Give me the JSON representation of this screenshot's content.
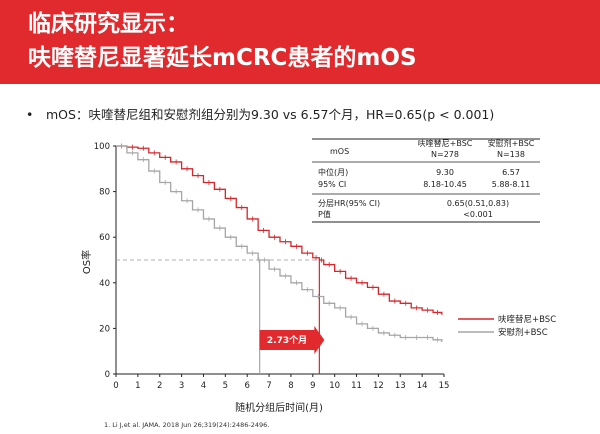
{
  "slide": {
    "title_line1": "临床研究显示：",
    "title_line2": "呋喹替尼显著延长mCRC患者的mOS",
    "bullet": "mOS：呋喹替尼组和安慰剂组分别为9.30 vs 6.57个月，HR=0.65(p < 0.001)",
    "footnote": "1.    Li J,et al. JAMA. 2018 Jun 26;319(24):2486-2496."
  },
  "table": {
    "row1": {
      "label": "mOS",
      "col1": "呋喹替尼+BSC",
      "col1b": "N=278",
      "col2": "安慰剂+BSC",
      "col2b": "N=138"
    },
    "row2": {
      "label": "中位(月)",
      "label2": "95% CI",
      "col1": "9.30",
      "col1b": "8.18-10.45",
      "col2": "6.57",
      "col2b": "5.88-8.11"
    },
    "row3": {
      "label": "分层HR(95% CI)",
      "label2": "P值",
      "value": "0.65(0.51,0.83)",
      "value2": "<0.001"
    }
  },
  "colors": {
    "accent": "#e02a2d",
    "treatment": "#d7262b",
    "placebo": "#a6a6a6",
    "gap_box": "#e02a2d"
  },
  "chart_data": {
    "type": "line",
    "xlabel": "随机分组后时间(月)",
    "ylabel": "OS率",
    "xlim": [
      0,
      15
    ],
    "ylim": [
      0,
      100
    ],
    "xticks": [
      0,
      1,
      2,
      3,
      4,
      5,
      6,
      7,
      8,
      9,
      10,
      11,
      12,
      13,
      14,
      15
    ],
    "yticks": [
      0,
      20,
      40,
      60,
      80,
      100
    ],
    "reference_line_y": 50,
    "median_markers": [
      6.57,
      9.3
    ],
    "gap_label": "2.73个月",
    "series": [
      {
        "name": "呋喹替尼+BSC",
        "color": "#d7262b",
        "x": [
          0,
          0.5,
          1,
          1.5,
          2,
          2.5,
          3,
          3.5,
          4,
          4.5,
          5,
          5.5,
          6,
          6.5,
          7,
          7.5,
          8,
          8.5,
          9,
          9.3,
          9.5,
          10,
          10.5,
          11,
          11.5,
          12,
          12.5,
          13,
          13.5,
          14,
          14.5,
          14.9
        ],
        "y": [
          100,
          99.5,
          99,
          97,
          95,
          93,
          90,
          87,
          84,
          81,
          77,
          73,
          68,
          63,
          60,
          58,
          56,
          53,
          51,
          50,
          48,
          45,
          42,
          40,
          38,
          35,
          32,
          31,
          29,
          28,
          27,
          26
        ]
      },
      {
        "name": "安慰剂+BSC",
        "color": "#a6a6a6",
        "x": [
          0,
          0.5,
          1,
          1.5,
          2,
          2.5,
          3,
          3.5,
          4,
          4.5,
          5,
          5.5,
          6,
          6.5,
          6.57,
          7,
          7.5,
          8,
          8.5,
          9,
          9.5,
          10,
          10.5,
          11,
          11.5,
          12,
          12.5,
          13,
          13.5,
          14,
          14.5,
          14.9
        ],
        "y": [
          100,
          97,
          94,
          89,
          84,
          80,
          76,
          72,
          68,
          64,
          60,
          56,
          53,
          50,
          50,
          46,
          43,
          40,
          37,
          34,
          31,
          29,
          25,
          22,
          20,
          18,
          17,
          16,
          16,
          16,
          15,
          14
        ]
      }
    ]
  }
}
